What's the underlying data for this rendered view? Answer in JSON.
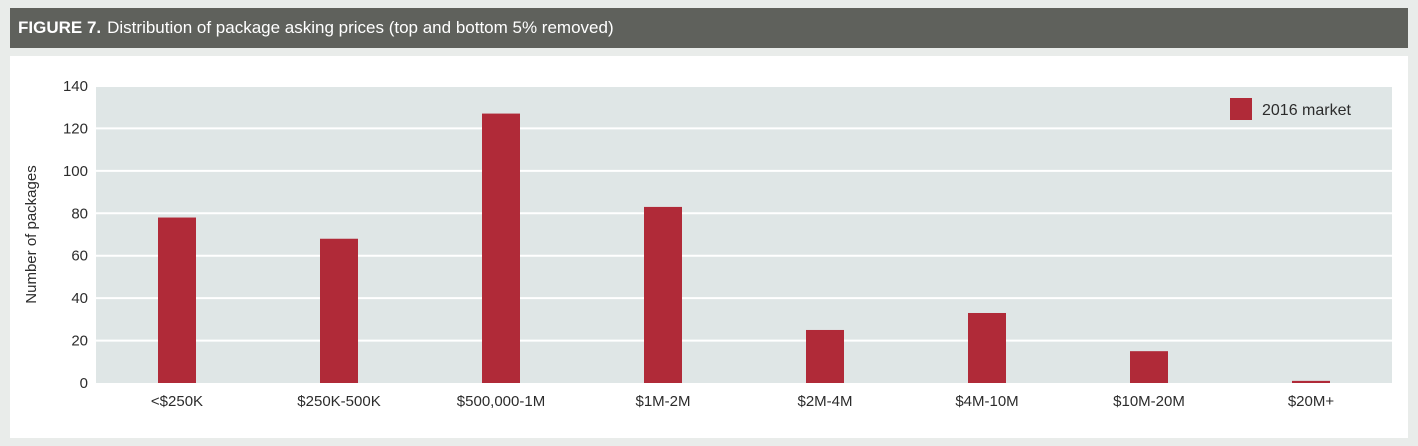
{
  "figure": {
    "number": "FIGURE 7.",
    "caption": "Distribution of package asking prices (top and bottom 5% removed)"
  },
  "colors": {
    "header_bg": "#5f615c",
    "plot_bg": "#dfe6e6",
    "bar": "#b02a38",
    "grid": "#ffffff"
  },
  "chart_data": {
    "type": "bar",
    "title": "Distribution of package asking prices (top and bottom 5% removed)",
    "categories": [
      "<$250K",
      "$250K-500K",
      "$500,000-1M",
      "$1M-2M",
      "$2M-4M",
      "$4M-10M",
      "$10M-20M",
      "$20M+"
    ],
    "series": [
      {
        "name": "2016 market",
        "values": [
          78,
          68,
          127,
          83,
          25,
          33,
          15,
          1
        ]
      }
    ],
    "xlabel": "",
    "ylabel": "Number of packages",
    "ylim": [
      0,
      140
    ],
    "yticks": [
      0,
      20,
      40,
      60,
      80,
      100,
      120,
      140
    ],
    "grid": true,
    "legend_position": "top-right"
  }
}
